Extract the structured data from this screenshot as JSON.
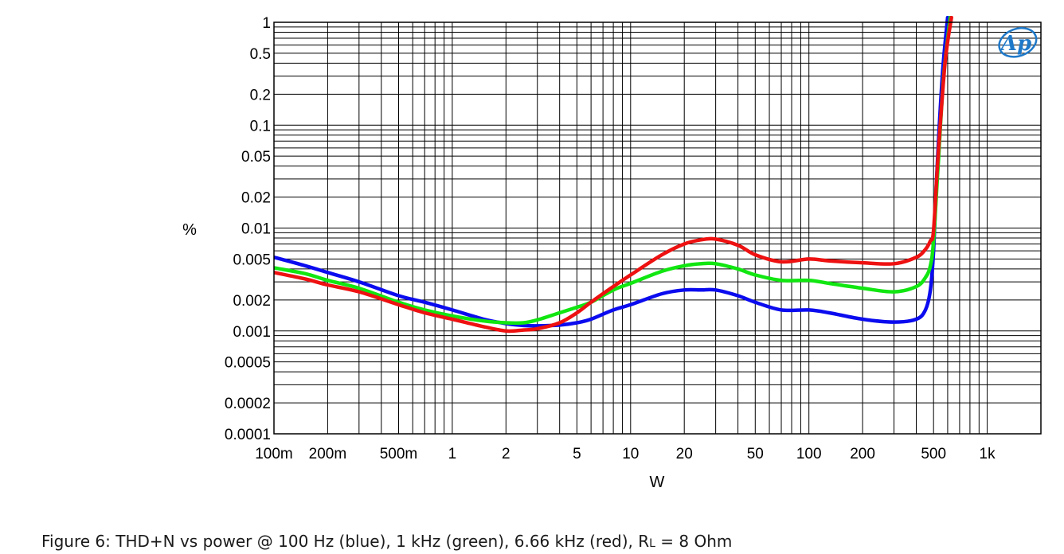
{
  "chart_data": {
    "type": "line",
    "xlabel": "W",
    "ylabel": "%",
    "xscale": "log",
    "yscale": "log",
    "xlim": [
      0.1,
      2000
    ],
    "ylim": [
      0.0001,
      1
    ],
    "grid": true,
    "xticks": [
      {
        "value": 0.1,
        "label": "100m"
      },
      {
        "value": 0.2,
        "label": "200m"
      },
      {
        "value": 0.5,
        "label": "500m"
      },
      {
        "value": 1,
        "label": "1"
      },
      {
        "value": 2,
        "label": "2"
      },
      {
        "value": 5,
        "label": "5"
      },
      {
        "value": 10,
        "label": "10"
      },
      {
        "value": 20,
        "label": "20"
      },
      {
        "value": 50,
        "label": "50"
      },
      {
        "value": 100,
        "label": "100"
      },
      {
        "value": 200,
        "label": "200"
      },
      {
        "value": 500,
        "label": "500"
      },
      {
        "value": 1000,
        "label": "1k"
      }
    ],
    "yticks": [
      {
        "value": 1,
        "label": "1"
      },
      {
        "value": 0.5,
        "label": "0.5"
      },
      {
        "value": 0.2,
        "label": "0.2"
      },
      {
        "value": 0.1,
        "label": "0.1"
      },
      {
        "value": 0.05,
        "label": "0.05"
      },
      {
        "value": 0.02,
        "label": "0.02"
      },
      {
        "value": 0.01,
        "label": "0.01"
      },
      {
        "value": 0.005,
        "label": "0.005"
      },
      {
        "value": 0.002,
        "label": "0.002"
      },
      {
        "value": 0.001,
        "label": "0.001"
      },
      {
        "value": 0.0005,
        "label": "0.0005"
      },
      {
        "value": 0.0002,
        "label": "0.0002"
      },
      {
        "value": 0.0001,
        "label": "0.0001"
      }
    ],
    "series": [
      {
        "color": "#0b0bef",
        "points": [
          [
            0.1,
            0.0052
          ],
          [
            0.15,
            0.0043
          ],
          [
            0.2,
            0.0037
          ],
          [
            0.3,
            0.003
          ],
          [
            0.5,
            0.0022
          ],
          [
            0.7,
            0.0019
          ],
          [
            1,
            0.0016
          ],
          [
            1.5,
            0.0013
          ],
          [
            2,
            0.00118
          ],
          [
            2.5,
            0.00113
          ],
          [
            3,
            0.00112
          ],
          [
            4,
            0.00114
          ],
          [
            5,
            0.0012
          ],
          [
            6,
            0.0013
          ],
          [
            8,
            0.0016
          ],
          [
            10,
            0.0018
          ],
          [
            15,
            0.0023
          ],
          [
            20,
            0.0025
          ],
          [
            25,
            0.0025
          ],
          [
            30,
            0.0025
          ],
          [
            40,
            0.0022
          ],
          [
            50,
            0.0019
          ],
          [
            70,
            0.0016
          ],
          [
            100,
            0.0016
          ],
          [
            130,
            0.0015
          ],
          [
            200,
            0.0013
          ],
          [
            300,
            0.00122
          ],
          [
            400,
            0.0013
          ],
          [
            450,
            0.0016
          ],
          [
            480,
            0.0025
          ],
          [
            500,
            0.006
          ],
          [
            520,
            0.03
          ],
          [
            560,
            0.3
          ],
          [
            600,
            1.5
          ]
        ]
      },
      {
        "color": "#11e611",
        "points": [
          [
            0.1,
            0.0041
          ],
          [
            0.15,
            0.0036
          ],
          [
            0.2,
            0.0031
          ],
          [
            0.3,
            0.0026
          ],
          [
            0.5,
            0.0019
          ],
          [
            0.7,
            0.0016
          ],
          [
            1,
            0.0014
          ],
          [
            1.5,
            0.00125
          ],
          [
            2,
            0.0012
          ],
          [
            2.5,
            0.0012
          ],
          [
            3,
            0.00128
          ],
          [
            4,
            0.0015
          ],
          [
            5,
            0.0017
          ],
          [
            6,
            0.0019
          ],
          [
            8,
            0.0025
          ],
          [
            10,
            0.0029
          ],
          [
            15,
            0.0038
          ],
          [
            20,
            0.0043
          ],
          [
            25,
            0.0045
          ],
          [
            30,
            0.0045
          ],
          [
            40,
            0.004
          ],
          [
            50,
            0.0035
          ],
          [
            70,
            0.0031
          ],
          [
            100,
            0.0031
          ],
          [
            130,
            0.0029
          ],
          [
            200,
            0.0026
          ],
          [
            300,
            0.0024
          ],
          [
            400,
            0.0027
          ],
          [
            450,
            0.0033
          ],
          [
            480,
            0.0043
          ],
          [
            500,
            0.0075
          ],
          [
            530,
            0.04
          ],
          [
            570,
            0.3
          ],
          [
            620,
            1.5
          ]
        ]
      },
      {
        "color": "#ee1111",
        "points": [
          [
            0.1,
            0.0037
          ],
          [
            0.15,
            0.0032
          ],
          [
            0.2,
            0.0028
          ],
          [
            0.3,
            0.0024
          ],
          [
            0.5,
            0.0018
          ],
          [
            0.7,
            0.0015
          ],
          [
            1,
            0.0013
          ],
          [
            1.5,
            0.0011
          ],
          [
            2,
            0.001
          ],
          [
            2.5,
            0.00102
          ],
          [
            3,
            0.00105
          ],
          [
            4,
            0.0012
          ],
          [
            5,
            0.0015
          ],
          [
            6,
            0.0019
          ],
          [
            8,
            0.0027
          ],
          [
            10,
            0.0035
          ],
          [
            15,
            0.0055
          ],
          [
            20,
            0.007
          ],
          [
            25,
            0.0077
          ],
          [
            30,
            0.0078
          ],
          [
            40,
            0.0068
          ],
          [
            50,
            0.0055
          ],
          [
            70,
            0.0047
          ],
          [
            100,
            0.005
          ],
          [
            130,
            0.0048
          ],
          [
            200,
            0.0046
          ],
          [
            300,
            0.0045
          ],
          [
            400,
            0.0052
          ],
          [
            450,
            0.0062
          ],
          [
            480,
            0.0075
          ],
          [
            500,
            0.0095
          ],
          [
            530,
            0.05
          ],
          [
            580,
            0.4
          ],
          [
            630,
            1.5
          ]
        ]
      }
    ]
  },
  "caption": {
    "prefix": "Figure 6: THD+N vs power @ 100 Hz (blue), 1 kHz (green), 6.66 kHz (red), R",
    "subscript": "L",
    "suffix": " = 8 Ohm"
  },
  "logo": {
    "text": "Ap",
    "color": "#1f79c9"
  }
}
